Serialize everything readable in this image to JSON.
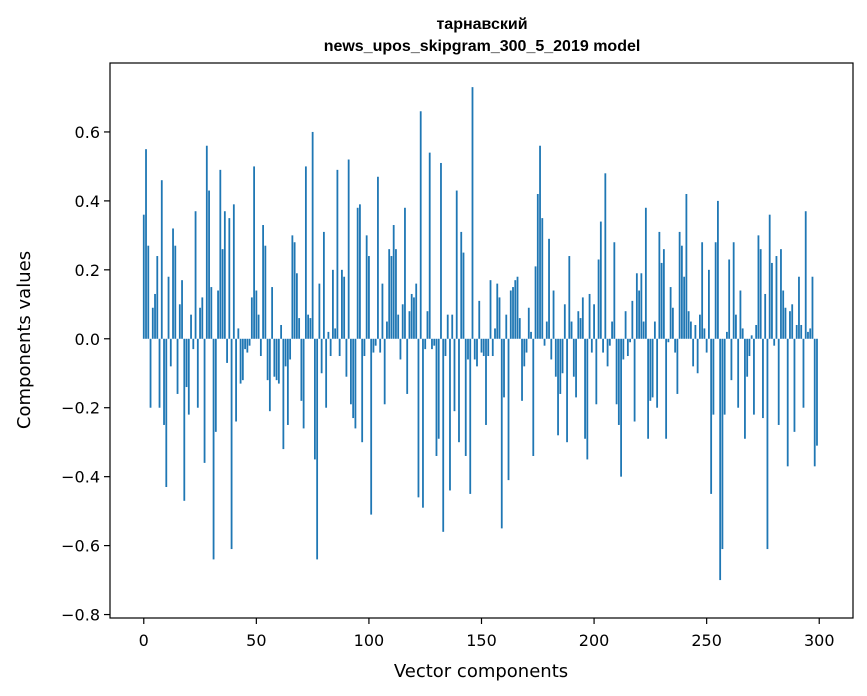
{
  "chart_data": {
    "type": "bar",
    "title": "тарнавский",
    "subtitle": "news_upos_skipgram_300_5_2019 model",
    "xlabel": "Vector components",
    "ylabel": "Components values",
    "xlim": [
      -15,
      315
    ],
    "ylim": [
      -0.81,
      0.8
    ],
    "xticks": [
      0,
      50,
      100,
      150,
      200,
      250,
      300
    ],
    "xtick_labels": [
      "0",
      "50",
      "100",
      "150",
      "200",
      "250",
      "300"
    ],
    "yticks": [
      -0.8,
      -0.6,
      -0.4,
      -0.2,
      0.0,
      0.2,
      0.4,
      0.6
    ],
    "ytick_labels": [
      "−0.8",
      "−0.6",
      "−0.4",
      "−0.2",
      "0.0",
      "0.2",
      "0.4",
      "0.6"
    ],
    "bar_color": "#1f77b4",
    "grid": false,
    "x": "indices 0..299",
    "values": [
      0.36,
      0.55,
      0.27,
      -0.2,
      0.09,
      0.13,
      0.24,
      -0.2,
      0.46,
      -0.25,
      -0.43,
      0.18,
      -0.08,
      0.32,
      0.27,
      -0.16,
      0.1,
      0.17,
      -0.47,
      -0.14,
      -0.22,
      0.07,
      -0.03,
      0.37,
      -0.2,
      0.09,
      0.12,
      -0.36,
      0.56,
      0.43,
      0.15,
      -0.64,
      -0.27,
      0.14,
      0.49,
      0.26,
      0.37,
      -0.07,
      0.35,
      -0.61,
      0.39,
      -0.24,
      0.03,
      -0.13,
      -0.12,
      -0.03,
      -0.04,
      -0.02,
      0.12,
      0.5,
      0.14,
      0.07,
      -0.05,
      0.33,
      0.27,
      -0.12,
      -0.21,
      0.15,
      -0.11,
      -0.12,
      -0.13,
      0.04,
      -0.32,
      -0.08,
      -0.25,
      -0.06,
      0.3,
      0.28,
      0.19,
      0.06,
      -0.18,
      -0.26,
      0.5,
      0.07,
      0.06,
      0.6,
      -0.35,
      -0.64,
      0.16,
      -0.1,
      0.31,
      -0.2,
      0.02,
      -0.05,
      0.2,
      0.03,
      0.49,
      -0.05,
      0.2,
      0.18,
      -0.11,
      0.52,
      -0.19,
      -0.23,
      -0.26,
      0.38,
      0.39,
      -0.3,
      -0.05,
      0.3,
      0.24,
      -0.51,
      -0.04,
      -0.02,
      0.47,
      -0.04,
      0.16,
      -0.19,
      0.05,
      0.26,
      0.24,
      0.33,
      0.26,
      0.07,
      -0.06,
      0.1,
      0.38,
      -0.16,
      0.08,
      0.13,
      0.12,
      0.16,
      -0.46,
      0.66,
      -0.49,
      -0.03,
      0.08,
      0.54,
      -0.03,
      -0.02,
      -0.34,
      -0.29,
      0.51,
      -0.56,
      -0.05,
      0.07,
      -0.44,
      0.07,
      -0.21,
      0.43,
      -0.3,
      0.31,
      0.25,
      -0.34,
      -0.06,
      -0.45,
      0.73,
      -0.06,
      -0.08,
      0.11,
      -0.04,
      -0.05,
      -0.25,
      -0.05,
      0.17,
      -0.05,
      0.03,
      0.16,
      0.12,
      -0.55,
      -0.17,
      0.07,
      -0.41,
      0.14,
      0.15,
      0.17,
      0.18,
      0.06,
      -0.18,
      -0.08,
      -0.04,
      0.09,
      0.02,
      -0.34,
      0.21,
      0.42,
      0.56,
      0.35,
      -0.02,
      0.05,
      0.29,
      -0.06,
      0.14,
      -0.11,
      -0.28,
      -0.16,
      -0.1,
      0.1,
      -0.3,
      0.24,
      0.05,
      -0.11,
      -0.17,
      0.08,
      0.06,
      0.12,
      -0.29,
      -0.35,
      0.13,
      -0.04,
      0.1,
      -0.19,
      0.23,
      0.34,
      -0.04,
      0.48,
      -0.08,
      -0.02,
      0.05,
      0.28,
      -0.19,
      -0.25,
      -0.4,
      -0.06,
      0.08,
      -0.05,
      -0.01,
      0.11,
      -0.24,
      0.19,
      0.14,
      0.19,
      0.05,
      0.38,
      -0.29,
      -0.18,
      -0.17,
      0.05,
      -0.2,
      0.31,
      0.22,
      0.26,
      -0.29,
      -0.01,
      0.15,
      0.09,
      -0.04,
      -0.16,
      0.31,
      0.27,
      0.18,
      0.42,
      0.08,
      0.05,
      -0.08,
      0.04,
      -0.1,
      0.07,
      0.28,
      0.03,
      -0.04,
      0.2,
      -0.45,
      -0.22,
      0.28,
      0.4,
      -0.7,
      -0.61,
      -0.22,
      0.02,
      0.23,
      -0.12,
      0.28,
      0.07,
      -0.2,
      0.14,
      0.03,
      -0.29,
      -0.11,
      -0.05,
      0.01,
      -0.22,
      0.04,
      0.3,
      0.26,
      -0.23,
      0.13,
      -0.61,
      0.36,
      0.22,
      -0.02,
      0.24,
      -0.25,
      0.26,
      0.14,
      0.09,
      -0.37,
      0.08,
      0.1,
      -0.27,
      0.04,
      0.18,
      0.04,
      -0.2,
      0.37,
      0.02,
      0.03,
      0.18,
      -0.37,
      -0.31
    ]
  }
}
